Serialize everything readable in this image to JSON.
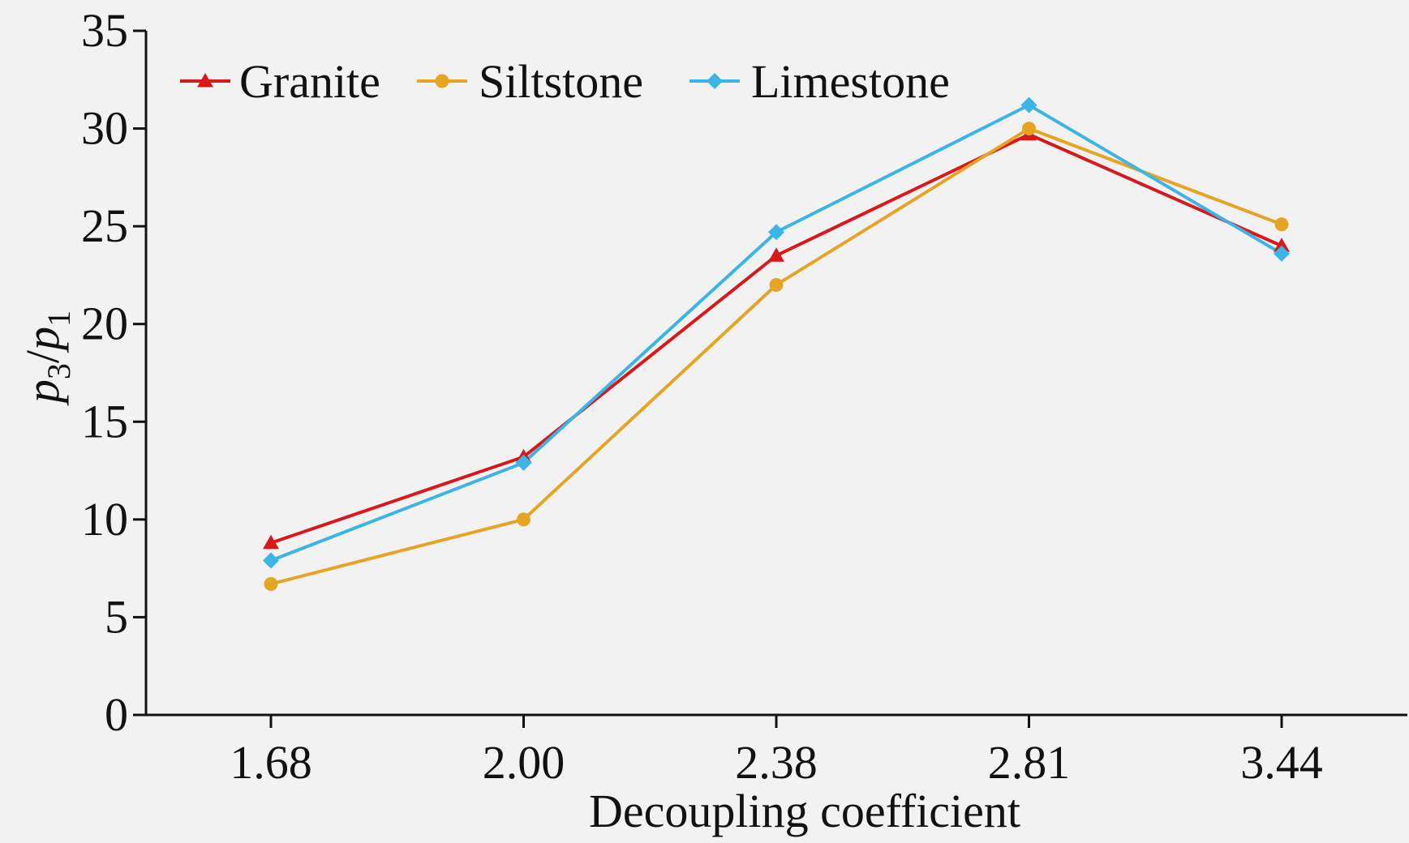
{
  "chart_data": {
    "type": "line",
    "xlabel": "Decoupling coefficient",
    "ylabel": {
      "base1": "p",
      "sub1": "3",
      "slash": "/",
      "base2": "p",
      "sub2": "1"
    },
    "categories": [
      "1.68",
      "2.00",
      "2.38",
      "2.81",
      "3.44"
    ],
    "ylim": [
      0,
      35
    ],
    "yticks": [
      0,
      5,
      10,
      15,
      20,
      25,
      30,
      35
    ],
    "grid": false,
    "legend_position": "top-left",
    "series": [
      {
        "name": "Granite",
        "color": "#d7191c",
        "marker": "triangle",
        "values": [
          8.8,
          13.2,
          23.5,
          29.7,
          24.0
        ]
      },
      {
        "name": "Siltstone",
        "color": "#e5a424",
        "marker": "circle",
        "values": [
          6.7,
          10.0,
          22.0,
          30.0,
          25.1
        ]
      },
      {
        "name": "Limestone",
        "color": "#3cb4e6",
        "marker": "diamond",
        "values": [
          7.9,
          12.9,
          24.7,
          31.2,
          23.6
        ]
      }
    ]
  }
}
